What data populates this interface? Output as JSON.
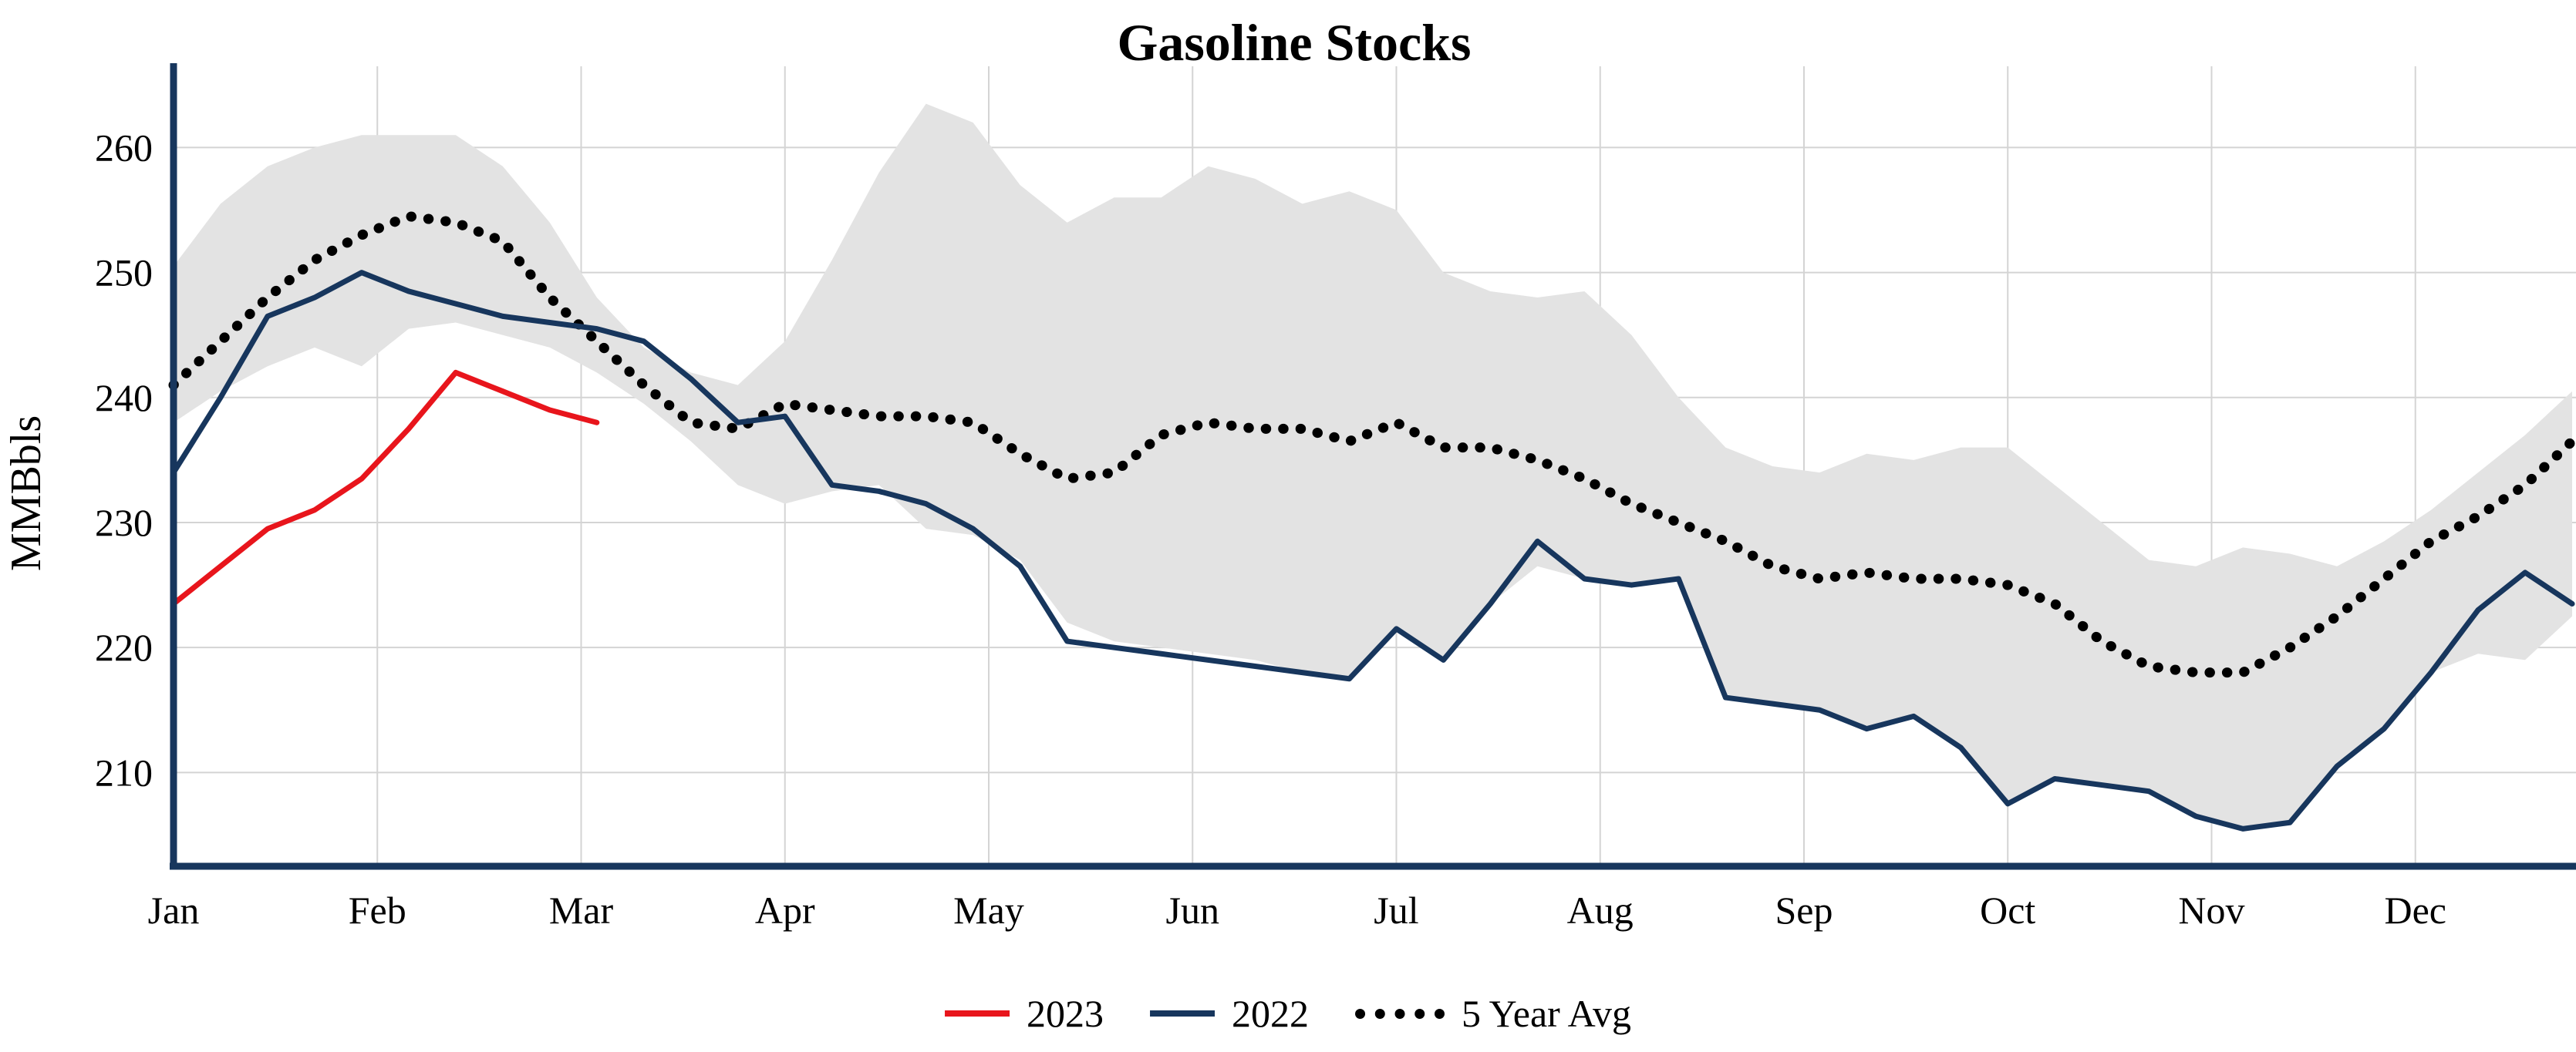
{
  "title": "Gasoline Stocks",
  "ylabel": "MMBbls",
  "legend": [
    {
      "label": "2023",
      "color": "#e8151c",
      "style": "solid"
    },
    {
      "label": "2022",
      "color": "#17365d",
      "style": "solid"
    },
    {
      "label": "5 Year Avg",
      "color": "#000000",
      "style": "dotted"
    }
  ],
  "colors": {
    "red_2023": "#e8151c",
    "navy_2022": "#17365d",
    "five_year_avg": "#000000",
    "range_band_fill": "#e3e3e3",
    "gridline": "#d4d4d4",
    "spine": "#17365d",
    "text": "#000000"
  },
  "chart_data": {
    "type": "line",
    "title": "Gasoline Stocks",
    "xlabel": "",
    "ylabel": "MMBbls",
    "x_unit": "week-of-year (0-51)",
    "month_ticks": [
      "Jan",
      "Feb",
      "Mar",
      "Apr",
      "May",
      "Jun",
      "Jul",
      "Aug",
      "Sep",
      "Oct",
      "Nov",
      "Dec"
    ],
    "yticks": [
      210,
      220,
      230,
      240,
      250,
      260
    ],
    "ylim": [
      202.5,
      266.5
    ],
    "grid": true,
    "legend_position": "bottom-center",
    "band": {
      "name": "5 Year Range",
      "fill": "#e3e3e3",
      "upper": [
        250.5,
        255.5,
        258.5,
        260,
        261,
        261,
        261,
        258.5,
        254,
        248,
        244,
        242,
        241,
        244.5,
        251,
        258,
        263.5,
        262,
        257,
        254,
        256,
        256,
        258.5,
        257.5,
        255.5,
        256.5,
        255,
        250,
        248.5,
        248,
        248.5,
        245,
        240,
        236,
        234.5,
        234,
        235.5,
        235,
        236,
        236,
        233,
        230,
        227,
        226.5,
        228,
        227.5,
        226.5,
        228.5,
        231,
        234,
        237,
        240.5
      ],
      "lower": [
        238,
        240.5,
        242.5,
        244,
        242.5,
        245.5,
        246,
        245,
        244,
        242,
        239.5,
        236.5,
        233,
        231.5,
        232.5,
        233,
        229.5,
        229,
        227,
        222,
        220.5,
        220,
        219.5,
        219,
        218,
        217.5,
        221.5,
        219,
        223.5,
        226.5,
        225.5,
        225,
        225.5,
        216,
        215.5,
        215,
        213.5,
        214.5,
        212,
        207.5,
        209.5,
        209,
        208.5,
        206.5,
        205.5,
        206,
        210.5,
        213.5,
        218,
        219.5,
        219,
        222.5
      ]
    },
    "series": [
      {
        "name": "2023",
        "color": "#e8151c",
        "style": "solid",
        "start_week": 0,
        "values": [
          223.5,
          226.5,
          229.5,
          231,
          233.5,
          237.5,
          242,
          240.5,
          239,
          238
        ]
      },
      {
        "name": "2022",
        "color": "#17365d",
        "style": "solid",
        "start_week": 0,
        "values": [
          234,
          240,
          246.5,
          248,
          250,
          248.5,
          247.5,
          246.5,
          246,
          245.5,
          244.5,
          241.5,
          238,
          238.5,
          233,
          232.5,
          231.5,
          229.5,
          226.5,
          220.5,
          220,
          219.5,
          219,
          218.5,
          218,
          217.5,
          221.5,
          219,
          223.5,
          228.5,
          225.5,
          225,
          225.5,
          216,
          215.5,
          215,
          213.5,
          214.5,
          212,
          207.5,
          209.5,
          209,
          208.5,
          206.5,
          205.5,
          206,
          210.5,
          213.5,
          218,
          223,
          226,
          223.5
        ]
      },
      {
        "name": "5 Year Avg",
        "color": "#000000",
        "style": "dotted",
        "start_week": 0,
        "values": [
          241,
          244.5,
          248,
          251,
          253,
          254.5,
          254,
          252.5,
          248,
          244.5,
          241,
          238,
          237.5,
          239.5,
          239,
          238.5,
          238.5,
          238,
          235.5,
          233.5,
          234,
          237,
          238,
          237.5,
          237.5,
          236.5,
          238,
          236,
          236,
          235,
          233.5,
          231.5,
          230,
          228.5,
          226.5,
          225.5,
          226,
          225.5,
          225.5,
          225,
          223.5,
          220.5,
          218.5,
          218,
          218,
          220,
          222.5,
          225.5,
          228.5,
          230.5,
          233,
          236.5
        ]
      }
    ]
  }
}
